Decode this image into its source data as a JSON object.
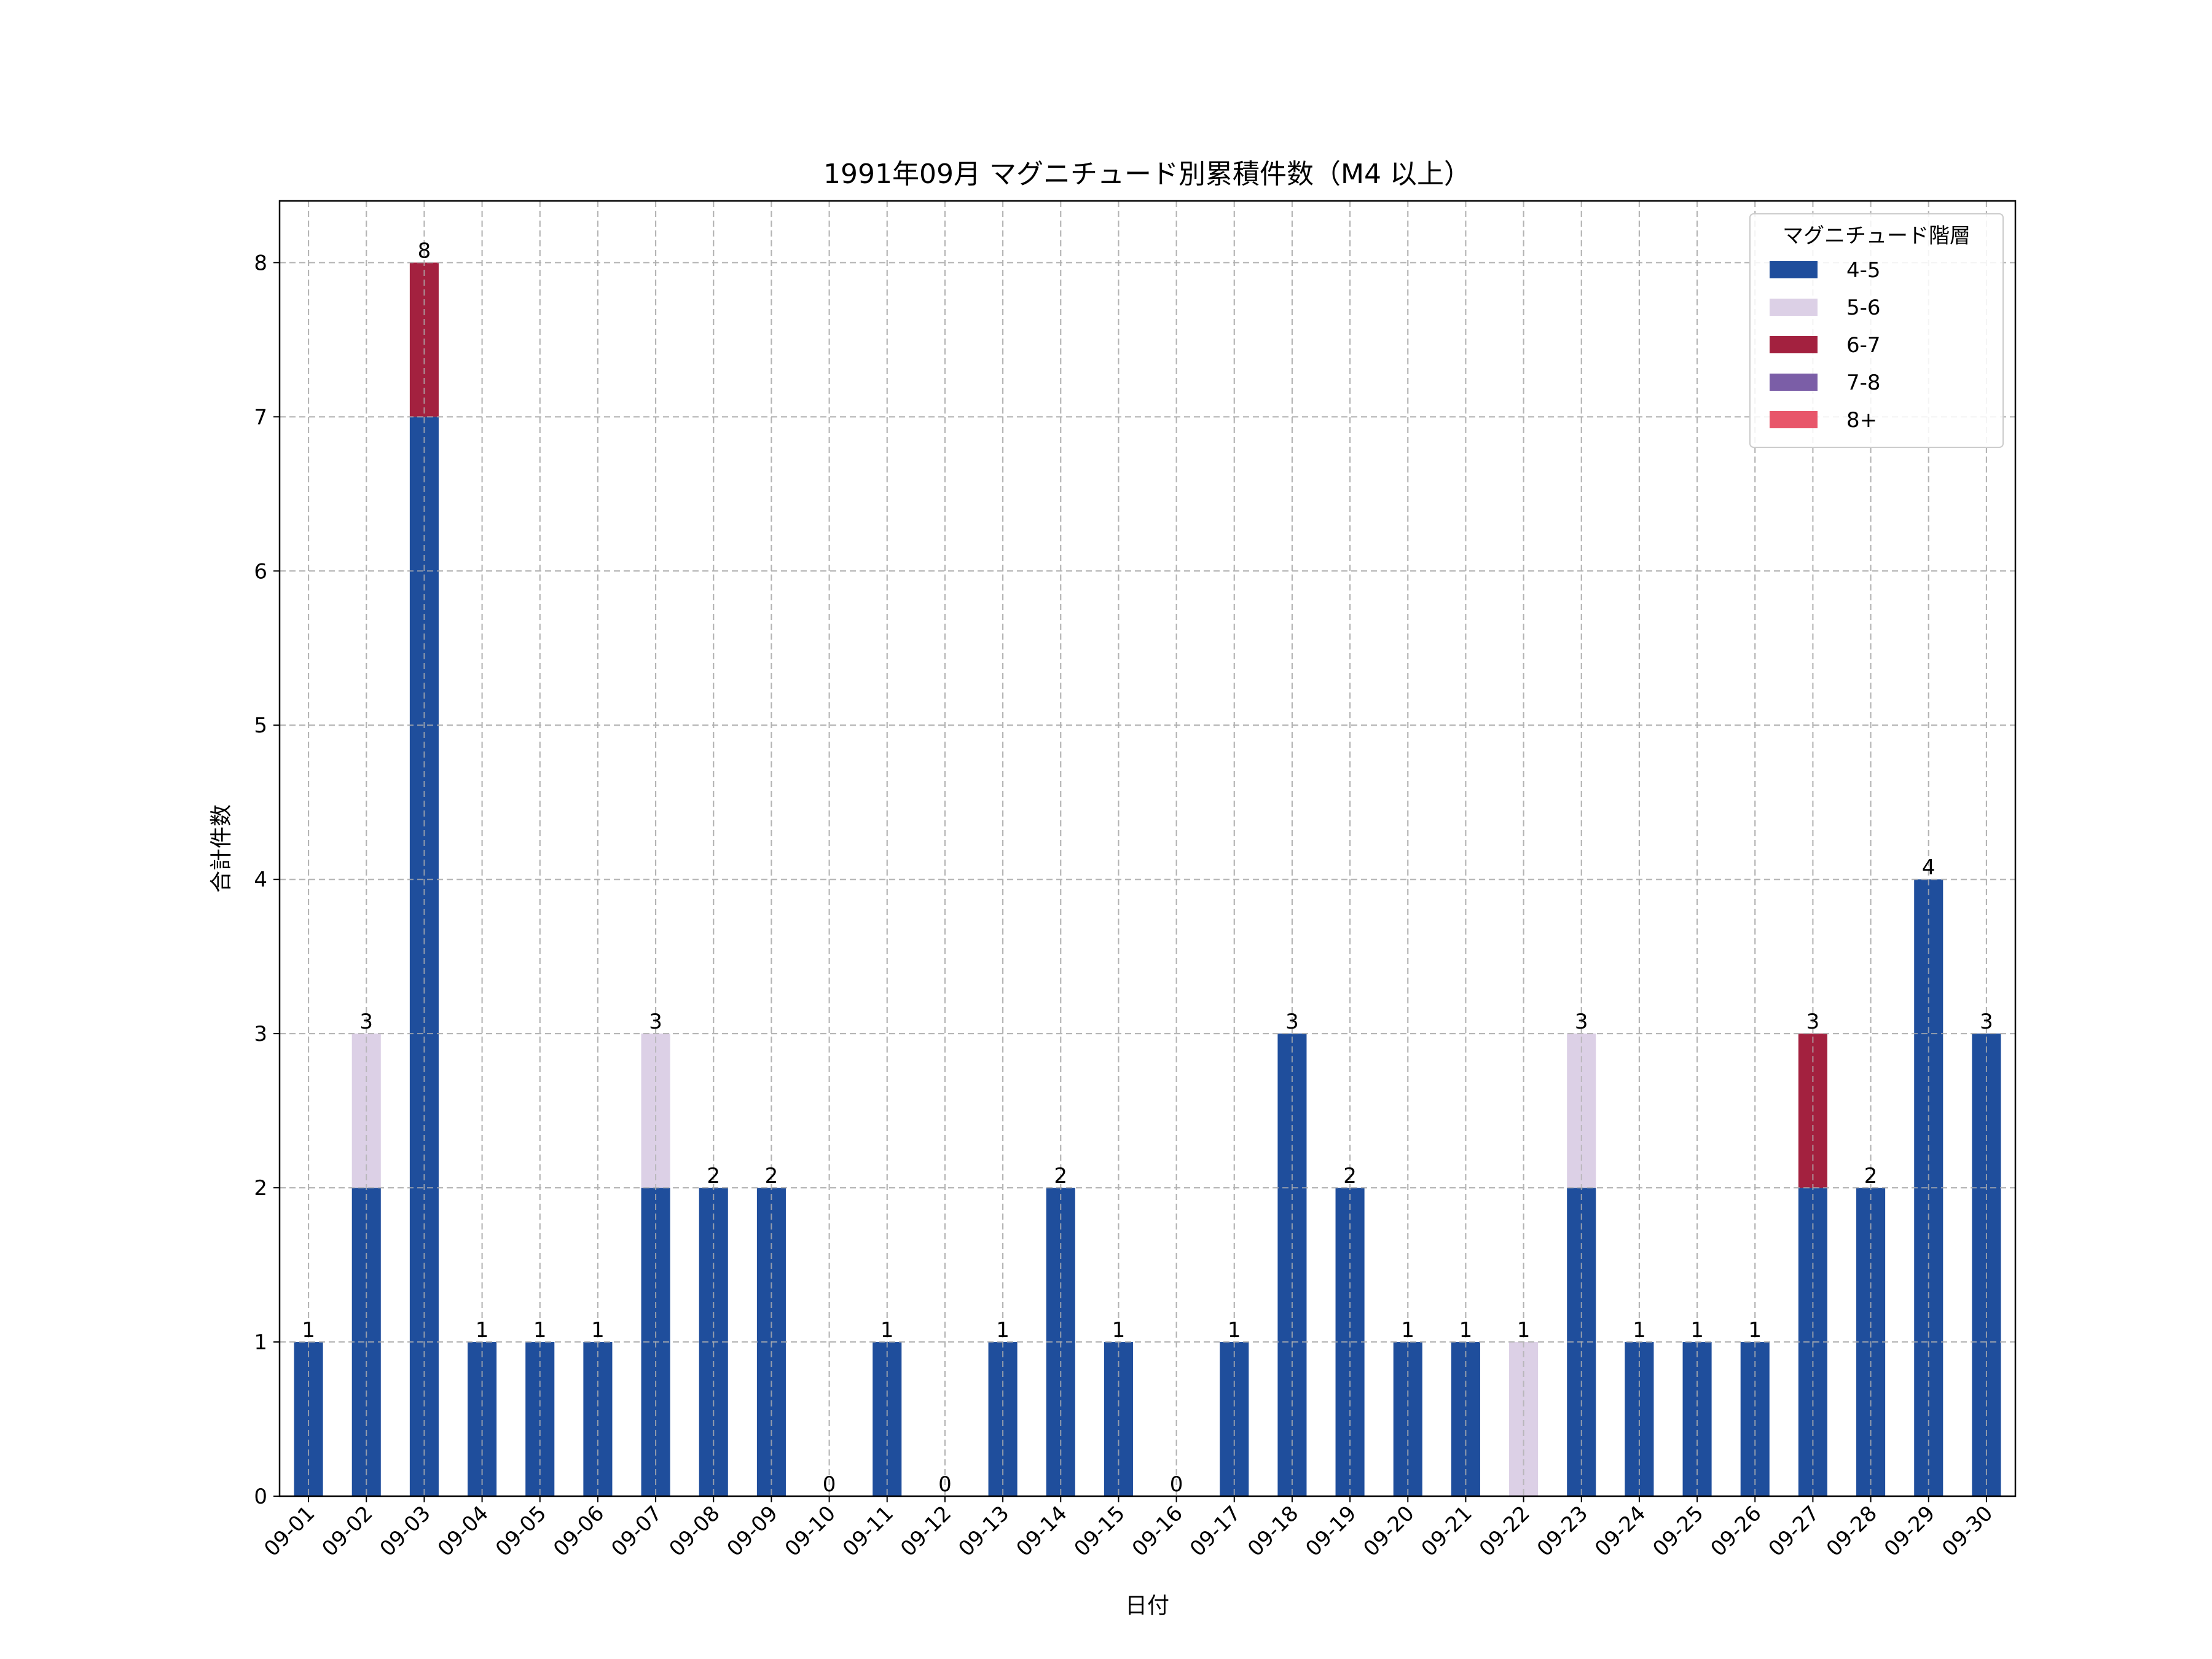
{
  "chart_data": {
    "type": "bar",
    "stacked": true,
    "title": "1991年09月 マグニチュード別累積件数（M4 以上）",
    "xlabel": "日付",
    "ylabel": "合計件数",
    "ylim": [
      0,
      8.4
    ],
    "yticks": [
      0,
      1,
      2,
      3,
      4,
      5,
      6,
      7,
      8
    ],
    "grid": true,
    "legend": {
      "title": "マグニチュード階層",
      "position": "top-right"
    },
    "categories": [
      "09-01",
      "09-02",
      "09-03",
      "09-04",
      "09-05",
      "09-06",
      "09-07",
      "09-08",
      "09-09",
      "09-10",
      "09-11",
      "09-12",
      "09-13",
      "09-14",
      "09-15",
      "09-16",
      "09-17",
      "09-18",
      "09-19",
      "09-20",
      "09-21",
      "09-22",
      "09-23",
      "09-24",
      "09-25",
      "09-26",
      "09-27",
      "09-28",
      "09-29",
      "09-30"
    ],
    "series": [
      {
        "name": "4-5",
        "color": "#1f4e9c",
        "values": [
          1,
          2,
          7,
          1,
          1,
          1,
          2,
          2,
          2,
          0,
          1,
          0,
          1,
          2,
          1,
          0,
          1,
          3,
          2,
          1,
          1,
          0,
          2,
          1,
          1,
          1,
          2,
          2,
          4,
          3
        ]
      },
      {
        "name": "5-6",
        "color": "#dcd0e6",
        "values": [
          0,
          1,
          0,
          0,
          0,
          0,
          1,
          0,
          0,
          0,
          0,
          0,
          0,
          0,
          0,
          0,
          0,
          0,
          0,
          0,
          0,
          1,
          1,
          0,
          0,
          0,
          0,
          0,
          0,
          0
        ]
      },
      {
        "name": "6-7",
        "color": "#a3213f",
        "values": [
          0,
          0,
          1,
          0,
          0,
          0,
          0,
          0,
          0,
          0,
          0,
          0,
          0,
          0,
          0,
          0,
          0,
          0,
          0,
          0,
          0,
          0,
          0,
          0,
          0,
          0,
          1,
          0,
          0,
          0
        ]
      },
      {
        "name": "7-8",
        "color": "#7b5ea7",
        "values": [
          0,
          0,
          0,
          0,
          0,
          0,
          0,
          0,
          0,
          0,
          0,
          0,
          0,
          0,
          0,
          0,
          0,
          0,
          0,
          0,
          0,
          0,
          0,
          0,
          0,
          0,
          0,
          0,
          0,
          0
        ]
      },
      {
        "name": "8+",
        "color": "#e8566a",
        "values": [
          0,
          0,
          0,
          0,
          0,
          0,
          0,
          0,
          0,
          0,
          0,
          0,
          0,
          0,
          0,
          0,
          0,
          0,
          0,
          0,
          0,
          0,
          0,
          0,
          0,
          0,
          0,
          0,
          0,
          0
        ]
      }
    ],
    "totals": [
      1,
      3,
      8,
      1,
      1,
      1,
      3,
      2,
      2,
      0,
      1,
      0,
      1,
      2,
      1,
      0,
      1,
      3,
      2,
      1,
      1,
      1,
      3,
      1,
      1,
      1,
      3,
      2,
      4,
      3
    ]
  }
}
